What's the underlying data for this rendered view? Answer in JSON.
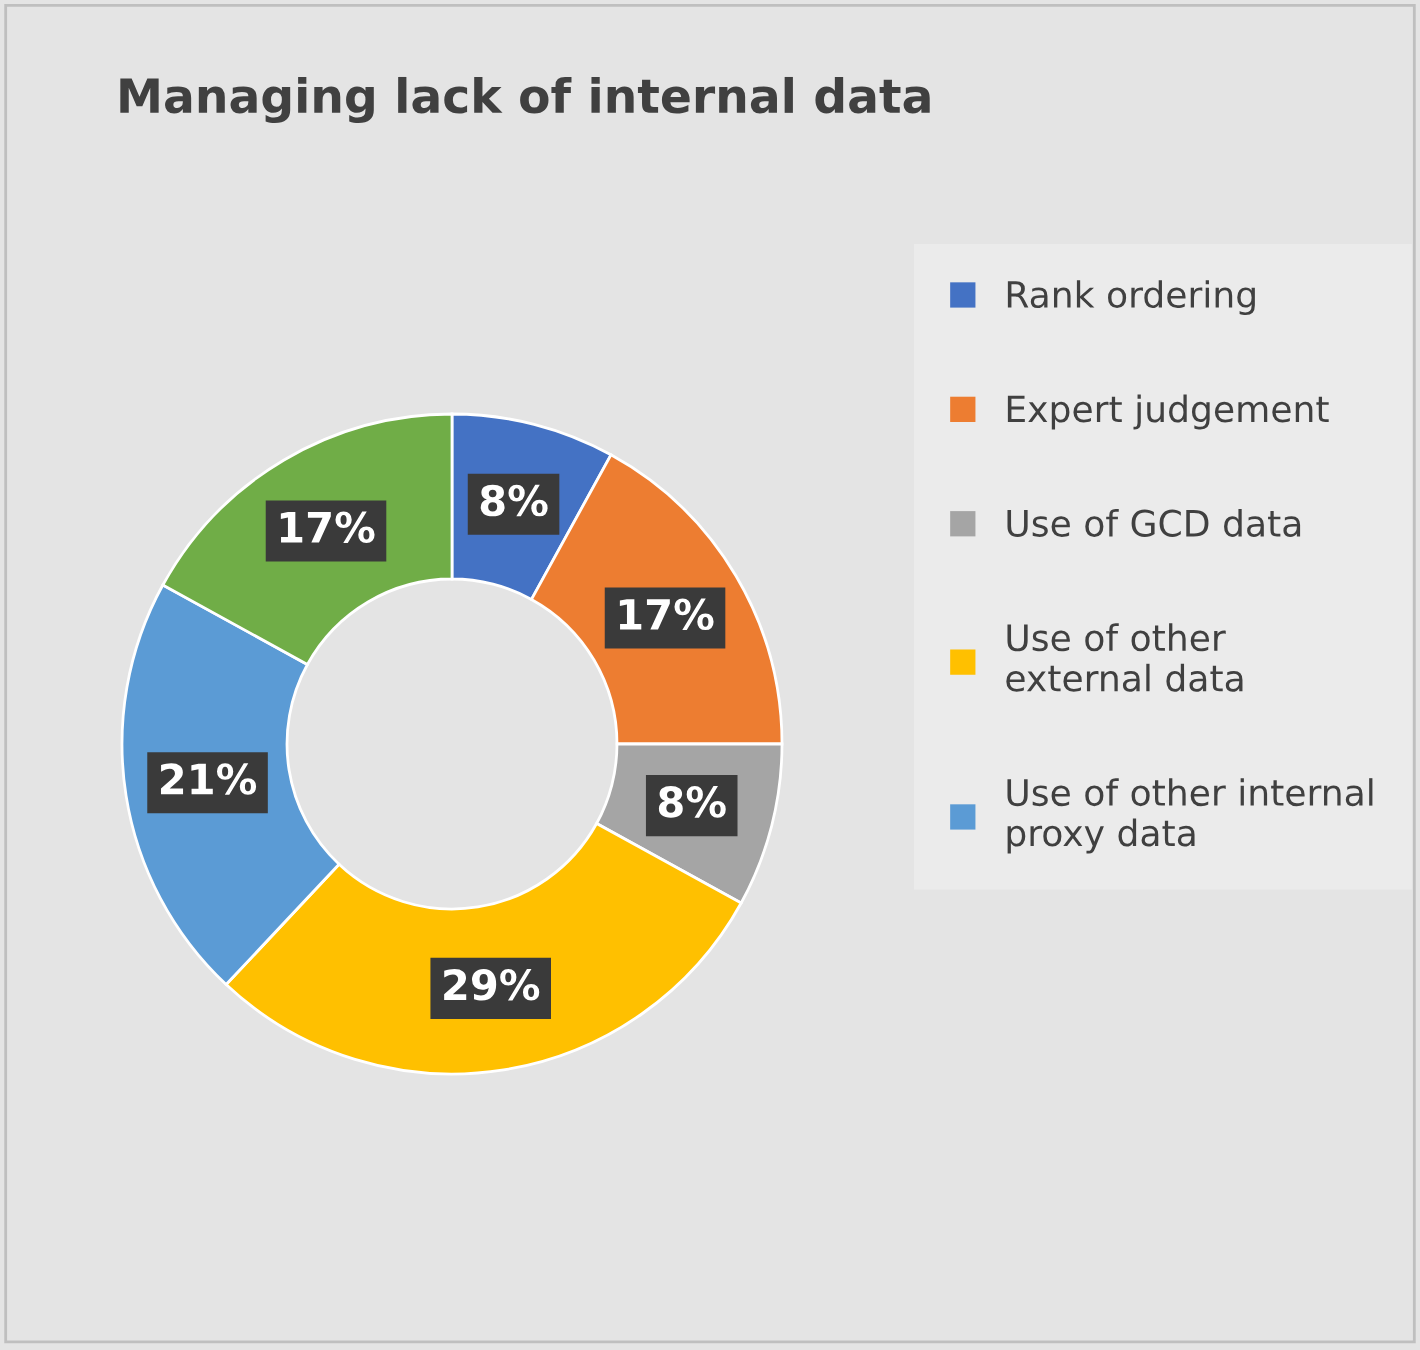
{
  "chart_data": {
    "type": "donut",
    "title": "Managing lack of internal data",
    "categories": [
      "Rank ordering",
      "Expert judgement",
      "Use of GCD data",
      "Use of other\nexternal data",
      "Use of other internal\nproxy data",
      null
    ],
    "values": [
      8,
      17,
      8,
      29,
      21,
      17
    ],
    "colors": [
      "#4472c4",
      "#ed7d31",
      "#a5a5a5",
      "#ffc000",
      "#5b9bd5",
      "#70ad47"
    ],
    "value_labels": [
      "8%",
      "17%",
      "8%",
      "29%",
      "21%",
      "17%"
    ],
    "legend": "right"
  }
}
